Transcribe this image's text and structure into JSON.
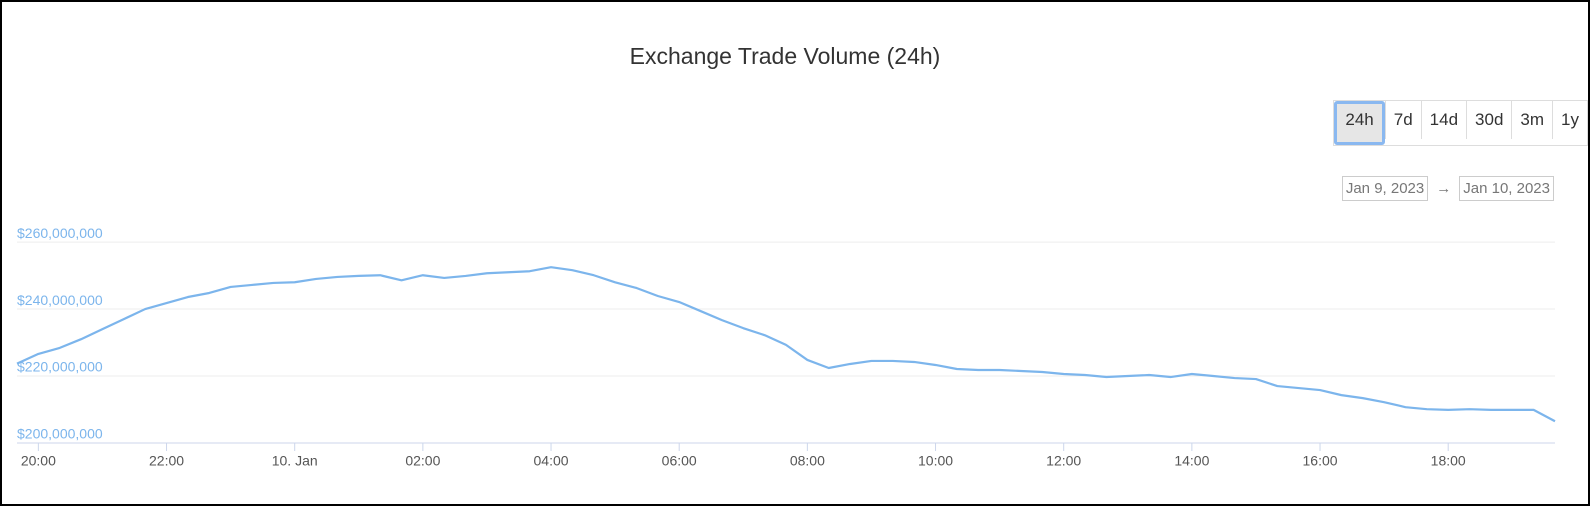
{
  "chart_data": {
    "type": "line",
    "title": "Exchange Trade Volume (24h)",
    "range_buttons": [
      "24h",
      "7d",
      "14d",
      "30d",
      "3m",
      "1y"
    ],
    "selected_button": 0,
    "date_from": "Jan 9, 2023",
    "arrow": "→",
    "date_to": "Jan 10, 2023",
    "categories": [
      null,
      "20:00",
      null,
      null,
      null,
      null,
      null,
      "22:00",
      null,
      null,
      null,
      null,
      null,
      "10. Jan",
      null,
      null,
      null,
      null,
      null,
      "02:00",
      null,
      null,
      null,
      null,
      null,
      "04:00",
      null,
      null,
      null,
      null,
      null,
      "06:00",
      null,
      null,
      null,
      null,
      null,
      "08:00",
      null,
      null,
      null,
      null,
      null,
      "10:00",
      null,
      null,
      null,
      null,
      null,
      "12:00",
      null,
      null,
      null,
      null,
      null,
      "14:00",
      null,
      null,
      null,
      null,
      null,
      "16:00",
      null,
      null,
      null,
      null,
      null,
      "18:00",
      null,
      null,
      null,
      null,
      null
    ],
    "values": [
      223700000,
      226600000,
      228400000,
      231000000,
      234000000,
      237000000,
      240000000,
      241800000,
      243600000,
      244800000,
      246600000,
      247200000,
      247800000,
      248000000,
      249000000,
      249600000,
      249900000,
      250100000,
      248600000,
      250100000,
      249300000,
      249900000,
      250700000,
      251000000,
      251300000,
      252500000,
      251600000,
      250100000,
      248000000,
      246300000,
      243900000,
      242100000,
      239400000,
      236700000,
      234300000,
      232200000,
      229300000,
      224800000,
      222400000,
      223600000,
      224500000,
      224500000,
      224200000,
      223300000,
      222100000,
      221800000,
      221800000,
      221500000,
      221200000,
      220600000,
      220300000,
      219700000,
      220000000,
      220300000,
      219700000,
      220600000,
      220000000,
      219400000,
      219100000,
      217000000,
      216400000,
      215800000,
      214300000,
      213400000,
      212200000,
      210700000,
      210100000,
      209900000,
      210100000,
      209900000,
      209900000,
      209900000,
      206500000
    ],
    "color": "#7cb5ec",
    "ylim": [
      200000000,
      266000000
    ],
    "yticks": [
      {
        "value": 200000000,
        "label": "$200,000,000"
      },
      {
        "value": 220000000,
        "label": "$220,000,000"
      },
      {
        "value": 240000000,
        "label": "$240,000,000"
      },
      {
        "value": 260000000,
        "label": "$260,000,000"
      }
    ],
    "grid": true
  }
}
